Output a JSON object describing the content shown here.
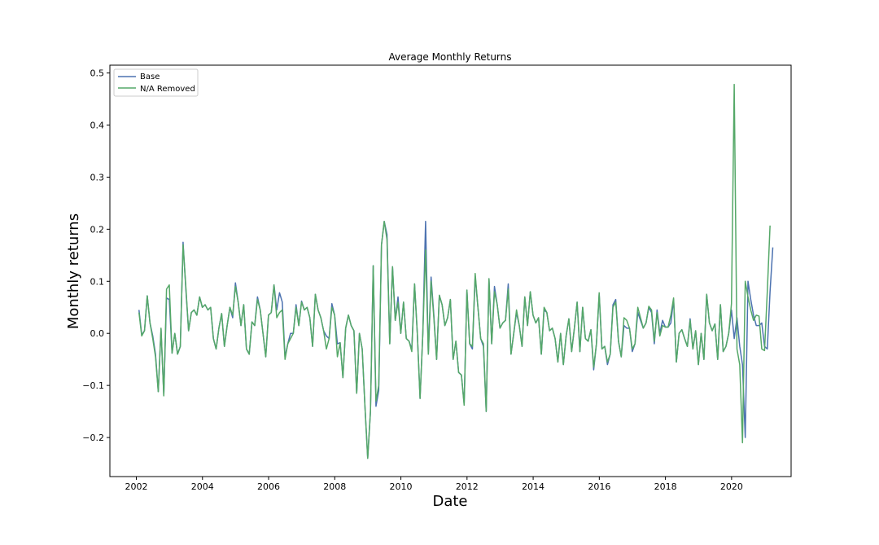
{
  "chart_data": {
    "type": "line",
    "title": "Average Monthly Returns",
    "xlabel": "Date",
    "ylabel": "Monthly returns",
    "xlim": [
      2001.2,
      2021.8
    ],
    "ylim": [
      -0.275,
      0.515
    ],
    "xticks": [
      2002,
      2004,
      2006,
      2008,
      2010,
      2012,
      2014,
      2016,
      2018,
      2020
    ],
    "xtick_labels": [
      "2002",
      "2004",
      "2006",
      "2008",
      "2010",
      "2012",
      "2014",
      "2016",
      "2018",
      "2020"
    ],
    "yticks": [
      -0.2,
      -0.1,
      0.0,
      0.1,
      0.2,
      0.3,
      0.4,
      0.5
    ],
    "ytick_labels": [
      "−0.2",
      "−0.1",
      "0.0",
      "0.1",
      "0.2",
      "0.3",
      "0.4",
      "0.5"
    ],
    "grid": false,
    "legend_position": "top-left",
    "x_start": 2002.08,
    "x_step_months": 1,
    "series": [
      {
        "name": "Base",
        "color": "#4c72b0",
        "values": [
          0.045,
          -0.003,
          0.005,
          0.072,
          0.02,
          -0.005,
          -0.04,
          -0.112,
          0.008,
          -0.118,
          0.068,
          0.065,
          -0.038,
          0.0,
          -0.04,
          -0.025,
          0.175,
          0.085,
          0.005,
          0.04,
          0.045,
          0.035,
          0.07,
          0.05,
          0.055,
          0.045,
          0.05,
          -0.01,
          -0.03,
          0.01,
          0.038,
          -0.025,
          0.015,
          0.05,
          0.03,
          0.097,
          0.06,
          0.015,
          0.055,
          -0.03,
          -0.04,
          0.022,
          0.015,
          0.07,
          0.045,
          0.0,
          -0.045,
          0.035,
          0.04,
          0.093,
          0.045,
          0.078,
          0.06,
          -0.045,
          -0.02,
          0.0,
          0.0,
          0.055,
          0.015,
          0.062,
          0.045,
          0.05,
          0.03,
          -0.025,
          0.075,
          0.045,
          0.03,
          0.005,
          -0.005,
          -0.01,
          0.057,
          0.035,
          -0.02,
          -0.018,
          -0.085,
          0.01,
          0.035,
          0.015,
          0.005,
          -0.115,
          0.0,
          -0.03,
          -0.14,
          -0.24,
          -0.15,
          0.13,
          -0.14,
          -0.11,
          0.17,
          0.215,
          0.19,
          -0.02,
          0.128,
          0.025,
          0.07,
          0.0,
          0.06,
          -0.01,
          -0.015,
          -0.03,
          0.095,
          0.0,
          -0.125,
          0.0,
          0.215,
          -0.04,
          0.108,
          0.035,
          -0.05,
          0.073,
          0.055,
          0.015,
          0.03,
          0.065,
          -0.05,
          -0.015,
          -0.075,
          -0.08,
          -0.135,
          0.083,
          -0.02,
          -0.03,
          0.11,
          0.05,
          -0.01,
          -0.025,
          -0.15,
          0.105,
          -0.02,
          0.09,
          0.055,
          0.01,
          0.02,
          0.025,
          0.095,
          -0.04,
          0.0,
          0.04,
          0.015,
          -0.025,
          0.07,
          0.015,
          0.08,
          0.035,
          0.02,
          0.03,
          -0.04,
          0.045,
          0.04,
          0.005,
          0.01,
          -0.01,
          -0.055,
          0.0,
          -0.06,
          -0.005,
          0.028,
          -0.035,
          0.01,
          0.06,
          -0.035,
          0.05,
          -0.01,
          -0.015,
          0.007,
          -0.07,
          -0.02,
          0.075,
          -0.03,
          -0.025,
          -0.06,
          -0.04,
          0.055,
          0.065,
          -0.015,
          -0.045,
          0.015,
          0.01,
          0.01,
          -0.035,
          -0.02,
          0.04,
          0.025,
          0.01,
          0.02,
          0.05,
          0.04,
          -0.02,
          0.045,
          0.0,
          0.025,
          0.012,
          0.012,
          0.02,
          0.065,
          -0.055,
          0.0,
          0.007,
          -0.01,
          -0.025,
          0.028,
          -0.03,
          0.005,
          -0.06,
          0.0,
          -0.05,
          0.075,
          0.02,
          0.005,
          0.018,
          -0.05,
          0.055,
          -0.035,
          -0.025,
          0.0,
          0.045,
          -0.01,
          0.03,
          -0.025,
          -0.06,
          -0.2,
          0.1,
          0.065,
          0.035,
          0.015,
          0.015,
          0.02,
          -0.025,
          -0.03,
          0.08,
          0.165
        ]
      },
      {
        "name": "N/A Removed",
        "color": "#55a868",
        "values": [
          0.04,
          -0.005,
          0.005,
          0.072,
          0.02,
          -0.01,
          -0.045,
          -0.112,
          0.01,
          -0.12,
          0.085,
          0.093,
          -0.038,
          0.0,
          -0.04,
          -0.025,
          0.17,
          0.09,
          0.005,
          0.04,
          0.045,
          0.035,
          0.07,
          0.05,
          0.055,
          0.045,
          0.05,
          -0.01,
          -0.03,
          0.01,
          0.038,
          -0.025,
          0.015,
          0.05,
          0.035,
          0.09,
          0.06,
          0.015,
          0.055,
          -0.03,
          -0.04,
          0.022,
          0.015,
          0.065,
          0.045,
          0.0,
          -0.045,
          0.035,
          0.04,
          0.093,
          0.03,
          0.04,
          0.045,
          -0.05,
          -0.02,
          -0.01,
          0.0,
          0.05,
          0.015,
          0.06,
          0.045,
          0.05,
          0.03,
          -0.025,
          0.075,
          0.045,
          0.03,
          0.005,
          -0.03,
          -0.01,
          0.05,
          0.035,
          -0.045,
          -0.018,
          -0.085,
          0.01,
          0.035,
          0.015,
          0.005,
          -0.115,
          0.0,
          -0.03,
          -0.14,
          -0.24,
          -0.15,
          0.13,
          -0.13,
          -0.1,
          0.17,
          0.215,
          0.18,
          -0.02,
          0.128,
          0.025,
          0.06,
          0.0,
          0.06,
          -0.01,
          -0.015,
          -0.035,
          0.095,
          0.0,
          -0.125,
          0.0,
          0.16,
          -0.04,
          0.1,
          0.03,
          -0.05,
          0.073,
          0.055,
          0.015,
          0.03,
          0.065,
          -0.05,
          -0.015,
          -0.075,
          -0.08,
          -0.138,
          0.083,
          -0.02,
          -0.025,
          0.115,
          0.05,
          -0.01,
          -0.02,
          -0.15,
          0.105,
          -0.02,
          0.08,
          0.055,
          0.01,
          0.02,
          0.025,
          0.085,
          -0.04,
          0.0,
          0.045,
          0.015,
          -0.025,
          0.07,
          0.015,
          0.08,
          0.035,
          0.02,
          0.03,
          -0.04,
          0.05,
          0.04,
          0.005,
          0.01,
          -0.01,
          -0.055,
          0.0,
          -0.06,
          -0.005,
          0.028,
          -0.035,
          0.01,
          0.06,
          -0.035,
          0.05,
          -0.01,
          -0.015,
          0.007,
          -0.065,
          -0.02,
          0.078,
          -0.03,
          -0.025,
          -0.055,
          -0.04,
          0.05,
          0.06,
          -0.015,
          -0.045,
          0.03,
          0.025,
          0.01,
          -0.03,
          -0.02,
          0.05,
          0.03,
          0.01,
          0.02,
          0.052,
          0.045,
          -0.015,
          0.04,
          -0.005,
          0.015,
          0.012,
          0.012,
          0.035,
          0.068,
          -0.055,
          0.0,
          0.007,
          -0.01,
          -0.025,
          0.025,
          -0.03,
          0.005,
          -0.06,
          0.0,
          -0.05,
          0.075,
          0.02,
          0.005,
          0.018,
          -0.05,
          0.055,
          -0.035,
          -0.025,
          0.0,
          0.057,
          0.478,
          -0.03,
          -0.06,
          -0.21,
          0.1,
          0.07,
          0.045,
          0.025,
          0.035,
          0.033,
          -0.03,
          -0.033,
          0.08,
          0.207
        ]
      }
    ]
  }
}
